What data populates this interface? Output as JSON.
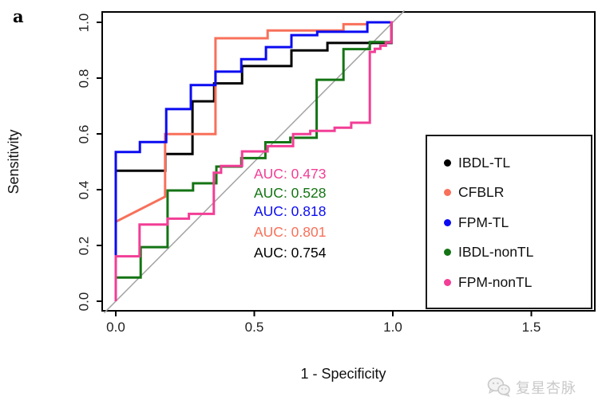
{
  "panel_label": "a",
  "watermark": {
    "icon": "wechat-icon",
    "text": "复星杏脉"
  },
  "chart_data": {
    "type": "line",
    "subtype": "roc-curves",
    "title": "",
    "xlabel": "1 - Specificity",
    "ylabel": "Sensitivity",
    "x_ticks": [
      "0.0",
      "0.5",
      "1.0",
      "1.5"
    ],
    "x_tick_values": [
      0,
      0.5,
      1.0,
      1.5
    ],
    "y_ticks": [
      "0.0",
      "0.2",
      "0.4",
      "0.6",
      "0.8",
      "1.0"
    ],
    "y_tick_values": [
      0,
      0.2,
      0.4,
      0.6,
      0.8,
      1.0
    ],
    "xlim": [
      -0.07,
      1.78
    ],
    "ylim": [
      -0.04,
      1.04
    ],
    "grid": false,
    "diagonal_reference": {
      "from": [
        -0.042,
        -0.042
      ],
      "to": [
        1.042,
        1.042
      ],
      "color": "#a3a3a3"
    },
    "legend_position": "right",
    "series": [
      {
        "name": "IBDL-TL",
        "color": "#000000",
        "auc": 0.754,
        "points": [
          [
            0,
            0
          ],
          [
            0,
            0.468
          ],
          [
            0.179,
            0.468
          ],
          [
            0.179,
            0.528
          ],
          [
            0.277,
            0.528
          ],
          [
            0.277,
            0.717
          ],
          [
            0.355,
            0.717
          ],
          [
            0.355,
            0.781
          ],
          [
            0.456,
            0.781
          ],
          [
            0.456,
            0.843
          ],
          [
            0.634,
            0.843
          ],
          [
            0.634,
            0.899
          ],
          [
            0.764,
            0.899
          ],
          [
            0.764,
            0.926
          ],
          [
            0.995,
            0.926
          ],
          [
            0.995,
            1.0
          ],
          [
            1.0,
            1.0
          ]
        ]
      },
      {
        "name": "CFBLR",
        "color": "#f8705a",
        "auc": 0.801,
        "points": [
          [
            0,
            0
          ],
          [
            0,
            0.285
          ],
          [
            0.178,
            0.375
          ],
          [
            0.178,
            0.599
          ],
          [
            0.36,
            0.599
          ],
          [
            0.36,
            0.943
          ],
          [
            0.548,
            0.943
          ],
          [
            0.548,
            0.971
          ],
          [
            0.822,
            0.971
          ],
          [
            0.822,
            0.993
          ],
          [
            0.908,
            0.993
          ],
          [
            0.908,
            1.0
          ],
          [
            1.0,
            1.0
          ]
        ]
      },
      {
        "name": "FPM-TL",
        "color": "#0b0bf2",
        "auc": 0.818,
        "points": [
          [
            0,
            0
          ],
          [
            0,
            0.535
          ],
          [
            0.087,
            0.535
          ],
          [
            0.087,
            0.571
          ],
          [
            0.182,
            0.571
          ],
          [
            0.182,
            0.689
          ],
          [
            0.271,
            0.689
          ],
          [
            0.271,
            0.775
          ],
          [
            0.36,
            0.775
          ],
          [
            0.36,
            0.823
          ],
          [
            0.453,
            0.823
          ],
          [
            0.453,
            0.868
          ],
          [
            0.542,
            0.868
          ],
          [
            0.542,
            0.911
          ],
          [
            0.634,
            0.911
          ],
          [
            0.634,
            0.954
          ],
          [
            0.727,
            0.954
          ],
          [
            0.727,
            0.966
          ],
          [
            0.908,
            0.966
          ],
          [
            0.908,
            1.0
          ],
          [
            1.0,
            1.0
          ]
        ]
      },
      {
        "name": "IBDL-nonTL",
        "color": "#147414",
        "auc": 0.528,
        "points": [
          [
            0,
            0
          ],
          [
            0,
            0.085
          ],
          [
            0.09,
            0.085
          ],
          [
            0.09,
            0.194
          ],
          [
            0.187,
            0.194
          ],
          [
            0.187,
            0.397
          ],
          [
            0.279,
            0.397
          ],
          [
            0.279,
            0.423
          ],
          [
            0.363,
            0.423
          ],
          [
            0.363,
            0.483
          ],
          [
            0.453,
            0.483
          ],
          [
            0.453,
            0.513
          ],
          [
            0.54,
            0.513
          ],
          [
            0.54,
            0.57
          ],
          [
            0.63,
            0.57
          ],
          [
            0.63,
            0.586
          ],
          [
            0.725,
            0.586
          ],
          [
            0.725,
            0.794
          ],
          [
            0.822,
            0.794
          ],
          [
            0.822,
            0.904
          ],
          [
            0.917,
            0.904
          ],
          [
            0.917,
            0.929
          ],
          [
            0.995,
            0.929
          ],
          [
            0.995,
            1.0
          ],
          [
            1.0,
            1.0
          ]
        ]
      },
      {
        "name": "FPM-nonTL",
        "color": "#f23e96",
        "auc": 0.473,
        "points": [
          [
            0,
            0
          ],
          [
            0,
            0.161
          ],
          [
            0.086,
            0.161
          ],
          [
            0.086,
            0.275
          ],
          [
            0.187,
            0.275
          ],
          [
            0.187,
            0.296
          ],
          [
            0.264,
            0.296
          ],
          [
            0.264,
            0.313
          ],
          [
            0.354,
            0.313
          ],
          [
            0.354,
            0.461
          ],
          [
            0.38,
            0.461
          ],
          [
            0.38,
            0.485
          ],
          [
            0.456,
            0.485
          ],
          [
            0.456,
            0.537
          ],
          [
            0.548,
            0.537
          ],
          [
            0.548,
            0.556
          ],
          [
            0.64,
            0.556
          ],
          [
            0.64,
            0.599
          ],
          [
            0.702,
            0.599
          ],
          [
            0.702,
            0.611
          ],
          [
            0.79,
            0.611
          ],
          [
            0.79,
            0.622
          ],
          [
            0.85,
            0.622
          ],
          [
            0.85,
            0.64
          ],
          [
            0.917,
            0.64
          ],
          [
            0.917,
            0.894
          ],
          [
            0.935,
            0.894
          ],
          [
            0.935,
            0.905
          ],
          [
            0.955,
            0.905
          ],
          [
            0.955,
            0.916
          ],
          [
            0.975,
            0.916
          ],
          [
            0.975,
            0.928
          ],
          [
            0.995,
            0.928
          ],
          [
            0.995,
            1.0
          ],
          [
            1.0,
            1.0
          ]
        ]
      }
    ],
    "annotations": [
      {
        "label": "AUC: 0.473",
        "color": "#f23e96",
        "y": 0.457
      },
      {
        "label": "AUC: 0.528",
        "color": "#147414",
        "y": 0.389
      },
      {
        "label": "AUC: 0.818",
        "color": "#0b0bf2",
        "y": 0.323
      },
      {
        "label": "AUC: 0.801",
        "color": "#f8705a",
        "y": 0.249
      },
      {
        "label": "AUC: 0.754",
        "color": "#000000",
        "y": 0.174
      }
    ]
  }
}
